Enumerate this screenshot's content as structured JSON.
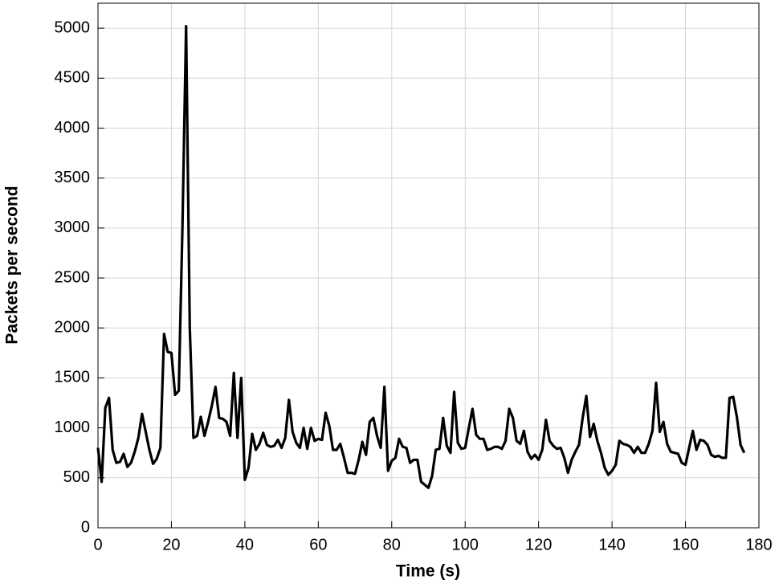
{
  "chart_data": {
    "type": "line",
    "xlabel": "Time (s)",
    "ylabel": "Packets per second",
    "xlim": [
      0,
      180
    ],
    "ylim": [
      0,
      5250
    ],
    "xticks": [
      0,
      20,
      40,
      60,
      80,
      100,
      120,
      140,
      160,
      180
    ],
    "yticks": [
      0,
      500,
      1000,
      1500,
      2000,
      2500,
      3000,
      3500,
      4000,
      4500,
      5000
    ],
    "grid": true,
    "x": [
      0,
      1,
      2,
      3,
      4,
      5,
      6,
      7,
      8,
      9,
      10,
      11,
      12,
      13,
      14,
      15,
      16,
      17,
      18,
      19,
      20,
      21,
      22,
      23,
      24,
      25,
      26,
      27,
      28,
      29,
      30,
      31,
      32,
      33,
      34,
      35,
      36,
      37,
      38,
      39,
      40,
      41,
      42,
      43,
      44,
      45,
      46,
      47,
      48,
      49,
      50,
      51,
      52,
      53,
      54,
      55,
      56,
      57,
      58,
      59,
      60,
      61,
      62,
      63,
      64,
      65,
      66,
      67,
      68,
      69,
      70,
      71,
      72,
      73,
      74,
      75,
      76,
      77,
      78,
      79,
      80,
      81,
      82,
      83,
      84,
      85,
      86,
      87,
      88,
      89,
      90,
      91,
      92,
      93,
      94,
      95,
      96,
      97,
      98,
      99,
      100,
      101,
      102,
      103,
      104,
      105,
      106,
      107,
      108,
      109,
      110,
      111,
      112,
      113,
      114,
      115,
      116,
      117,
      118,
      119,
      120,
      121,
      122,
      123,
      124,
      125,
      126,
      127,
      128,
      129,
      130,
      131,
      132,
      133,
      134,
      135,
      136,
      137,
      138,
      139,
      140,
      141,
      142,
      143,
      144,
      145,
      146,
      147,
      148,
      149,
      150,
      151,
      152,
      153,
      154,
      155,
      156,
      157,
      158,
      159,
      160,
      161,
      162,
      163,
      164,
      165,
      166,
      167,
      168,
      169,
      170,
      171,
      172,
      173,
      174,
      175,
      176
    ],
    "series": [
      {
        "color": "#000000",
        "values": [
          800,
          460,
          1200,
          1300,
          780,
          650,
          660,
          740,
          610,
          650,
          760,
          900,
          1140,
          960,
          780,
          640,
          690,
          800,
          1940,
          1760,
          1750,
          1330,
          1370,
          3000,
          5020,
          2000,
          900,
          920,
          1110,
          920,
          1060,
          1220,
          1410,
          1100,
          1090,
          1060,
          920,
          1550,
          900,
          1500,
          480,
          600,
          940,
          780,
          840,
          950,
          830,
          810,
          820,
          880,
          800,
          900,
          1280,
          960,
          850,
          800,
          1000,
          790,
          1000,
          870,
          890,
          880,
          1150,
          1020,
          780,
          780,
          840,
          700,
          550,
          550,
          540,
          680,
          860,
          730,
          1060,
          1100,
          920,
          800,
          1410,
          570,
          670,
          700,
          890,
          810,
          800,
          650,
          680,
          680,
          460,
          430,
          400,
          520,
          780,
          790,
          1100,
          820,
          750,
          1360,
          850,
          790,
          800,
          1000,
          1190,
          930,
          890,
          890,
          780,
          790,
          810,
          810,
          790,
          870,
          1190,
          1100,
          870,
          840,
          970,
          760,
          690,
          730,
          680,
          780,
          1080,
          870,
          820,
          790,
          800,
          700,
          550,
          680,
          760,
          830,
          1100,
          1320,
          910,
          1040,
          870,
          750,
          600,
          530,
          570,
          630,
          870,
          840,
          830,
          810,
          750,
          810,
          750,
          750,
          840,
          970,
          1450,
          960,
          1060,
          840,
          760,
          750,
          740,
          650,
          630,
          800,
          970,
          780,
          880,
          870,
          830,
          730,
          710,
          720,
          700,
          700,
          1300,
          1310,
          1110,
          830,
          750
        ]
      }
    ]
  }
}
